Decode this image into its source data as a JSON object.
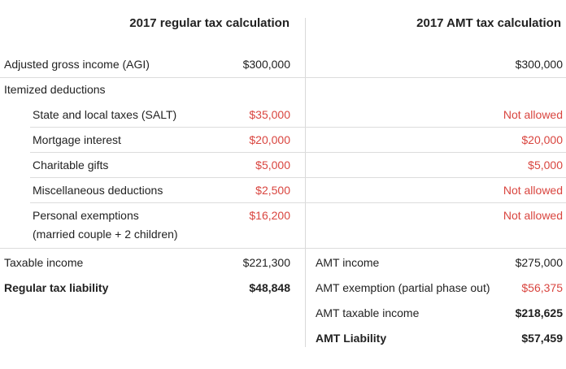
{
  "headers": {
    "regular": "2017 regular tax calculation",
    "amt": "2017 AMT tax calculation"
  },
  "rows": {
    "agi": {
      "label": "Adjusted gross income (AGI)",
      "regular": "$300,000",
      "amt": "$300,000"
    },
    "itemized": {
      "label": "Itemized deductions"
    },
    "salt": {
      "label": "State and local taxes (SALT)",
      "regular": "$35,000",
      "amt": "Not allowed"
    },
    "mortgage": {
      "label": "Mortgage interest",
      "regular": "$20,000",
      "amt": "$20,000"
    },
    "charitable": {
      "label": "Charitable gifts",
      "regular": "$5,000",
      "amt": "$5,000"
    },
    "misc": {
      "label": "Miscellaneous deductions",
      "regular": "$2,500",
      "amt": "Not allowed"
    },
    "exemptions": {
      "label": "Personal exemptions",
      "sublabel": "(married couple + 2 children)",
      "regular": "$16,200",
      "amt": "Not allowed"
    }
  },
  "regular_summary": {
    "taxable_income": {
      "label": "Taxable income",
      "value": "$221,300"
    },
    "liability": {
      "label": "Regular tax liability",
      "value": "$48,848"
    }
  },
  "amt_summary": {
    "income": {
      "label": "AMT income",
      "value": "$275,000"
    },
    "exemption": {
      "label": "AMT exemption (partial phase out)",
      "value": "$56,375"
    },
    "taxable_income": {
      "label": "AMT taxable income",
      "value": "$218,625"
    },
    "liability": {
      "label": "AMT Liability",
      "value": "$57,459"
    }
  },
  "colors": {
    "deduction_red": "#d9453f",
    "text": "#222222",
    "rule": "#dcdcdc"
  }
}
